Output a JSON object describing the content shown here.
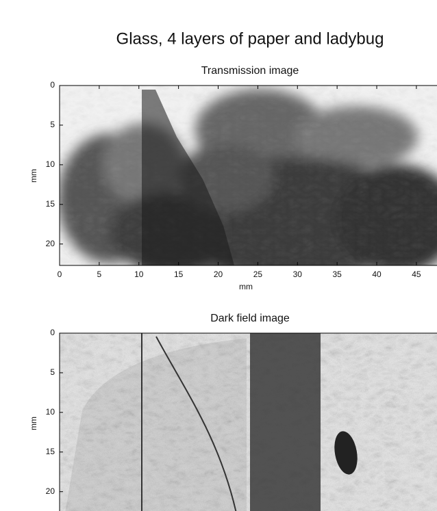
{
  "title": "Glass, 4 layers of paper and ladybug",
  "chart_data": [
    {
      "type": "image",
      "title": "Transmission image",
      "x_label": "mm",
      "y_label": "mm",
      "xlim": [
        0,
        47.6
      ],
      "ylim": [
        0,
        22.7
      ],
      "y_reversed": true,
      "xticks": [
        0,
        5,
        10,
        15,
        20,
        25,
        30,
        35,
        40,
        45
      ],
      "yticks": [
        0,
        5,
        10,
        15,
        20
      ]
    },
    {
      "type": "image",
      "title": "Dark field image",
      "y_label": "mm",
      "xlim": [
        0,
        47.6
      ],
      "ylim": [
        0,
        22.7
      ],
      "y_reversed": true,
      "yticks": [
        0,
        5,
        10,
        15,
        20
      ]
    }
  ]
}
